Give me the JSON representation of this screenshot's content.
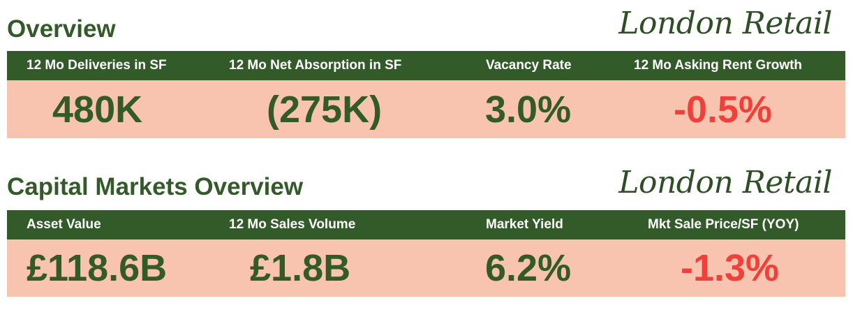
{
  "overview": {
    "title": "Overview",
    "brand": "London Retail",
    "columns": [
      {
        "label": "12 Mo Deliveries in SF",
        "value": "480K"
      },
      {
        "label": "12 Mo Net Absorption in SF",
        "value": "(275K)"
      },
      {
        "label": "Vacancy Rate",
        "value": "3.0%"
      },
      {
        "label": "12 Mo Asking Rent Growth",
        "value": "-0.5%"
      }
    ]
  },
  "capital_markets": {
    "title": "Capital Markets Overview",
    "brand": "London Retail",
    "columns": [
      {
        "label": "Asset Value",
        "value": "£118.6B"
      },
      {
        "label": "12 Mo Sales Volume",
        "value": "£1.8B"
      },
      {
        "label": "Market Yield",
        "value": "6.2%"
      },
      {
        "label": "Mkt Sale Price/SF (YOY)",
        "value": "-1.3%"
      }
    ]
  },
  "colors": {
    "header_green": "#335a29",
    "value_bg": "#f8c4b0",
    "positive_text": "#335a29",
    "negative_text": "#f1403a"
  }
}
